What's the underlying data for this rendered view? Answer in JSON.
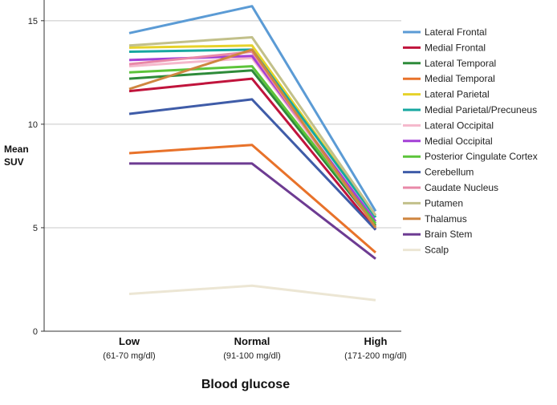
{
  "chart_data": {
    "type": "line",
    "title": "",
    "xlabel": "Blood glucose",
    "ylabel_lines": [
      "Mean",
      "SUV"
    ],
    "ylim": [
      0,
      16
    ],
    "yticks": [
      0,
      5,
      10,
      15
    ],
    "grid": "horizontal",
    "legend_position": "right",
    "categories": [
      "Low",
      "Normal",
      "High"
    ],
    "category_sublabels": [
      "(61-70 mg/dl)",
      "(91-100 mg/dl)",
      "(171-200 mg/dl)"
    ],
    "series": [
      {
        "name": "Lateral Frontal",
        "color": "#5b9bd5",
        "values": [
          14.4,
          15.7,
          5.8
        ]
      },
      {
        "name": "Medial Frontal",
        "color": "#c0143c",
        "values": [
          11.6,
          12.2,
          4.9
        ]
      },
      {
        "name": "Lateral Temporal",
        "color": "#2e8b3a",
        "values": [
          12.2,
          12.6,
          5.1
        ]
      },
      {
        "name": "Medial Temporal",
        "color": "#e8722a",
        "values": [
          8.6,
          9.0,
          3.8
        ]
      },
      {
        "name": "Lateral Parietal",
        "color": "#e6d22a",
        "values": [
          13.7,
          13.8,
          5.5
        ]
      },
      {
        "name": "Medial Parietal/Precuneus",
        "color": "#17a7a0",
        "values": [
          13.5,
          13.6,
          5.5
        ]
      },
      {
        "name": "Lateral Occipital",
        "color": "#f5b8cc",
        "values": [
          12.8,
          13.2,
          5.2
        ]
      },
      {
        "name": "Medial Occipital",
        "color": "#a33fd6",
        "values": [
          13.1,
          13.3,
          5.3
        ]
      },
      {
        "name": "Posterior Cingulate Cortex",
        "color": "#5cc43a",
        "values": [
          12.5,
          12.8,
          5.2
        ]
      },
      {
        "name": "Cerebellum",
        "color": "#3f5ca8",
        "values": [
          10.5,
          11.2,
          4.9
        ]
      },
      {
        "name": "Caudate Nucleus",
        "color": "#e989a8",
        "values": [
          12.9,
          13.5,
          5.0
        ]
      },
      {
        "name": "Putamen",
        "color": "#c2c08a",
        "values": [
          13.8,
          14.2,
          5.6
        ]
      },
      {
        "name": "Thalamus",
        "color": "#cf8640",
        "values": [
          11.7,
          13.6,
          5.0
        ]
      },
      {
        "name": "Brain Stem",
        "color": "#6d3b92",
        "values": [
          8.1,
          8.1,
          3.5
        ]
      },
      {
        "name": "Scalp",
        "color": "#ece6d4",
        "values": [
          1.8,
          2.2,
          1.5
        ]
      }
    ]
  }
}
